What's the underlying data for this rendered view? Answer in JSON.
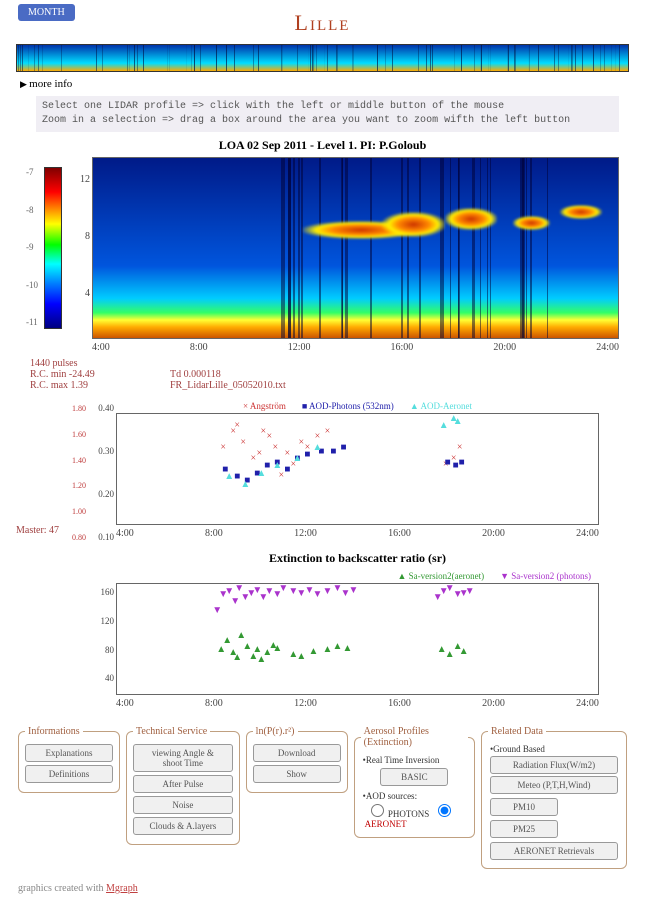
{
  "header": {
    "month_label": "MONTH",
    "title": "Lille",
    "more_info": "more info"
  },
  "instructions": {
    "line1": "Select one LIDAR profile => click with the left or middle button of the mouse",
    "line2": "Zoom in a selection => drag a box around the area you want to zoom wifth the left button"
  },
  "main_chart": {
    "type": "heatmap",
    "title": "LOA    02 Sep 2011 - Level 1. PI: P.Goloub",
    "xlim": [
      0,
      24
    ],
    "xticks": [
      4,
      8,
      12,
      16,
      20,
      24
    ],
    "xtick_labels": [
      "4:00",
      "8:00",
      "12:00",
      "16:00",
      "20:00",
      "24:00"
    ],
    "ylim": [
      0,
      14
    ],
    "yticks": [
      4,
      8,
      12
    ],
    "colorbar": {
      "min": -11,
      "max": -7,
      "ticks": [
        -7,
        -8,
        -9,
        -10,
        -11
      ],
      "colors_top_to_bottom": [
        "#800000",
        "#ff0000",
        "#ff8000",
        "#ffff00",
        "#00ff00",
        "#00ffff",
        "#0080ff",
        "#0000ff",
        "#000080"
      ]
    },
    "meta": {
      "pulses": "1440 pulses",
      "rc_min": "R.C. min -24.49",
      "rc_max": "R.C. max 1.39",
      "td": "Td 0.000118",
      "file": "FR_LidarLille_05052010.txt"
    }
  },
  "aod_chart": {
    "type": "scatter",
    "xlim": [
      0,
      24
    ],
    "xticks": [
      4,
      8,
      12,
      16,
      20,
      24
    ],
    "xtick_labels": [
      "4:00",
      "8:00",
      "12:00",
      "16:00",
      "20:00",
      "24:00"
    ],
    "ylim_left": [
      0.1,
      0.4
    ],
    "yticks_left": [
      0.1,
      0.2,
      0.3,
      0.4
    ],
    "ylim_right": [
      0.8,
      1.8
    ],
    "yticks_right": [
      0.8,
      1.0,
      1.2,
      1.4,
      1.6,
      1.8
    ],
    "master": "Master: 47",
    "legend": [
      {
        "label": "Angström",
        "marker": "×",
        "color": "#cc3333"
      },
      {
        "label": "AOD-Photons (532nm)",
        "marker": "■",
        "color": "#2020aa"
      },
      {
        "label": "AOD-Aeronet",
        "marker": "▲",
        "color": "#55dddd"
      }
    ],
    "series_angstrom": {
      "color": "#cc3333",
      "marker": "×",
      "points": [
        [
          5.3,
          1.4
        ],
        [
          5.8,
          1.55
        ],
        [
          6.0,
          1.6
        ],
        [
          6.3,
          1.45
        ],
        [
          6.8,
          1.3
        ],
        [
          7.1,
          1.35
        ],
        [
          7.3,
          1.55
        ],
        [
          7.6,
          1.5
        ],
        [
          7.9,
          1.4
        ],
        [
          8.2,
          1.15
        ],
        [
          8.5,
          1.35
        ],
        [
          8.8,
          1.25
        ],
        [
          9.2,
          1.45
        ],
        [
          9.5,
          1.4
        ],
        [
          10.0,
          1.5
        ],
        [
          10.5,
          1.55
        ],
        [
          16.4,
          1.25
        ],
        [
          16.8,
          1.3
        ],
        [
          17.1,
          1.4
        ]
      ]
    },
    "series_photons": {
      "color": "#2020aa",
      "marker": "■",
      "points": [
        [
          5.4,
          0.22
        ],
        [
          6.0,
          0.2
        ],
        [
          6.5,
          0.19
        ],
        [
          7.0,
          0.21
        ],
        [
          7.5,
          0.23
        ],
        [
          8.0,
          0.24
        ],
        [
          8.5,
          0.22
        ],
        [
          9.0,
          0.25
        ],
        [
          9.5,
          0.26
        ],
        [
          10.2,
          0.27
        ],
        [
          10.8,
          0.27
        ],
        [
          11.3,
          0.28
        ],
        [
          16.5,
          0.24
        ],
        [
          16.9,
          0.23
        ],
        [
          17.2,
          0.24
        ]
      ]
    },
    "series_aeronet": {
      "color": "#55dddd",
      "marker": "▲",
      "points": [
        [
          5.6,
          0.2
        ],
        [
          6.4,
          0.18
        ],
        [
          7.2,
          0.21
        ],
        [
          8.0,
          0.23
        ],
        [
          9.0,
          0.25
        ],
        [
          10.0,
          0.28
        ],
        [
          16.3,
          0.34
        ],
        [
          16.8,
          0.36
        ],
        [
          17.0,
          0.35
        ]
      ]
    }
  },
  "ext_chart": {
    "type": "scatter",
    "title": "Extinction to backscatter ratio (sr)",
    "xlim": [
      0,
      24
    ],
    "xticks": [
      4,
      8,
      12,
      16,
      20,
      24
    ],
    "xtick_labels": [
      "4:00",
      "8:00",
      "12:00",
      "16:00",
      "20:00",
      "24:00"
    ],
    "ylim": [
      0,
      180
    ],
    "yticks": [
      40,
      80,
      120,
      160
    ],
    "legend": [
      {
        "label": "Sa-version2(aeronet)",
        "marker": "▲",
        "color": "#339933"
      },
      {
        "label": "Sa-version2 (photons)",
        "marker": "▼",
        "color": "#aa33cc"
      }
    ],
    "series_aeronet": {
      "color": "#339933",
      "marker": "▲",
      "points": [
        [
          5.2,
          55
        ],
        [
          5.5,
          70
        ],
        [
          5.8,
          50
        ],
        [
          6.0,
          42
        ],
        [
          6.2,
          78
        ],
        [
          6.5,
          60
        ],
        [
          6.8,
          45
        ],
        [
          7.0,
          55
        ],
        [
          7.2,
          40
        ],
        [
          7.5,
          50
        ],
        [
          7.8,
          62
        ],
        [
          8.0,
          58
        ],
        [
          8.8,
          48
        ],
        [
          9.2,
          45
        ],
        [
          9.8,
          52
        ],
        [
          10.5,
          55
        ],
        [
          11.0,
          60
        ],
        [
          11.5,
          58
        ],
        [
          16.2,
          55
        ],
        [
          16.6,
          48
        ],
        [
          17.0,
          60
        ],
        [
          17.3,
          52
        ]
      ]
    },
    "series_photons": {
      "color": "#aa33cc",
      "marker": "▼",
      "points": [
        [
          5.0,
          120
        ],
        [
          5.3,
          145
        ],
        [
          5.6,
          150
        ],
        [
          5.9,
          135
        ],
        [
          6.1,
          155
        ],
        [
          6.4,
          140
        ],
        [
          6.7,
          148
        ],
        [
          7.0,
          152
        ],
        [
          7.3,
          140
        ],
        [
          7.6,
          150
        ],
        [
          8.0,
          145
        ],
        [
          8.3,
          155
        ],
        [
          8.8,
          150
        ],
        [
          9.2,
          148
        ],
        [
          9.6,
          152
        ],
        [
          10.0,
          145
        ],
        [
          10.5,
          150
        ],
        [
          11.0,
          155
        ],
        [
          11.4,
          148
        ],
        [
          11.8,
          152
        ],
        [
          16.0,
          140
        ],
        [
          16.3,
          150
        ],
        [
          16.6,
          155
        ],
        [
          17.0,
          145
        ],
        [
          17.3,
          148
        ],
        [
          17.6,
          150
        ]
      ]
    }
  },
  "panels": {
    "informations": {
      "legend": "Informations",
      "buttons": [
        "Explanations",
        "Definitions"
      ]
    },
    "technical": {
      "legend": "Technical Service",
      "buttons": [
        "viewing Angle & shoot Time",
        "After Pulse",
        "Noise",
        "Clouds & A.layers"
      ]
    },
    "lnpr": {
      "legend": "ln(P(r).r²)",
      "buttons": [
        "Download",
        "Show"
      ]
    },
    "aerosol": {
      "legend": "Aerosol Profiles (Extinction)",
      "sub1": "•Real Time Inversion",
      "basic": "BASIC",
      "sub2": "•AOD sources:",
      "radio1": "PHOTONS",
      "radio2": "AERONET",
      "selected": "AERONET"
    },
    "related": {
      "legend": "Related Data",
      "sub": "•Ground Based",
      "buttons": [
        "Radiation Flux(W/m2)",
        "Meteo (P,T,H,Wind)",
        "PM10",
        "PM25",
        "AERONET Retrievals"
      ]
    }
  },
  "footer": {
    "text": "graphics created with ",
    "link": "Mgraph"
  }
}
